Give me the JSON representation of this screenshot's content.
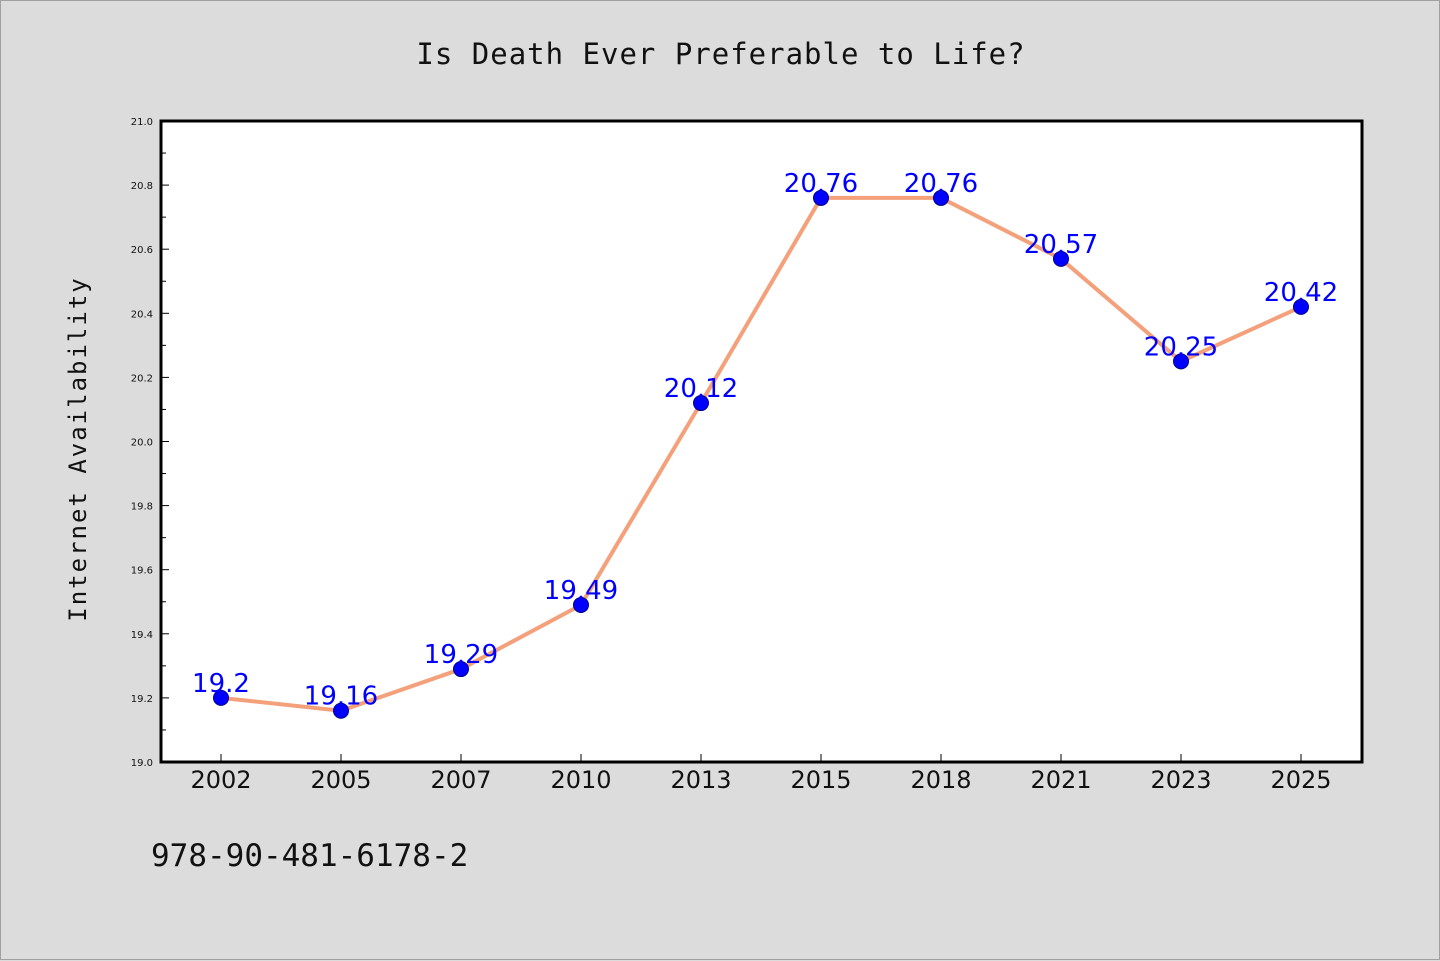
{
  "colors": {
    "background": "#dcdcdc",
    "plot_background": "#ffffff",
    "line": "#f4a07a",
    "marker": "#0000ff",
    "data_label": "#0000ff"
  },
  "footer": {
    "isbn": "978-90-481-6178-2"
  },
  "chart_data": {
    "type": "line",
    "title": "Is Death Ever Preferable to Life?",
    "xlabel": "",
    "ylabel": "Internet Availability",
    "categories": [
      "2002",
      "2005",
      "2007",
      "2010",
      "2013",
      "2015",
      "2018",
      "2021",
      "2023",
      "2025"
    ],
    "values": [
      19.2,
      19.16,
      19.29,
      19.49,
      20.12,
      20.76,
      20.76,
      20.57,
      20.25,
      20.42
    ],
    "data_labels": [
      "19.2",
      "19.16",
      "19.29",
      "19.49",
      "20.12",
      "20.76",
      "20.76",
      "20.57",
      "20.25",
      "20.42"
    ],
    "yticks": [
      "19.0",
      "19.2",
      "19.4",
      "19.6",
      "19.8",
      "20.0",
      "20.2",
      "20.4",
      "20.6",
      "20.8",
      "21.0"
    ],
    "ylim": [
      19.0,
      21.0
    ],
    "grid": false,
    "legend": "none"
  }
}
